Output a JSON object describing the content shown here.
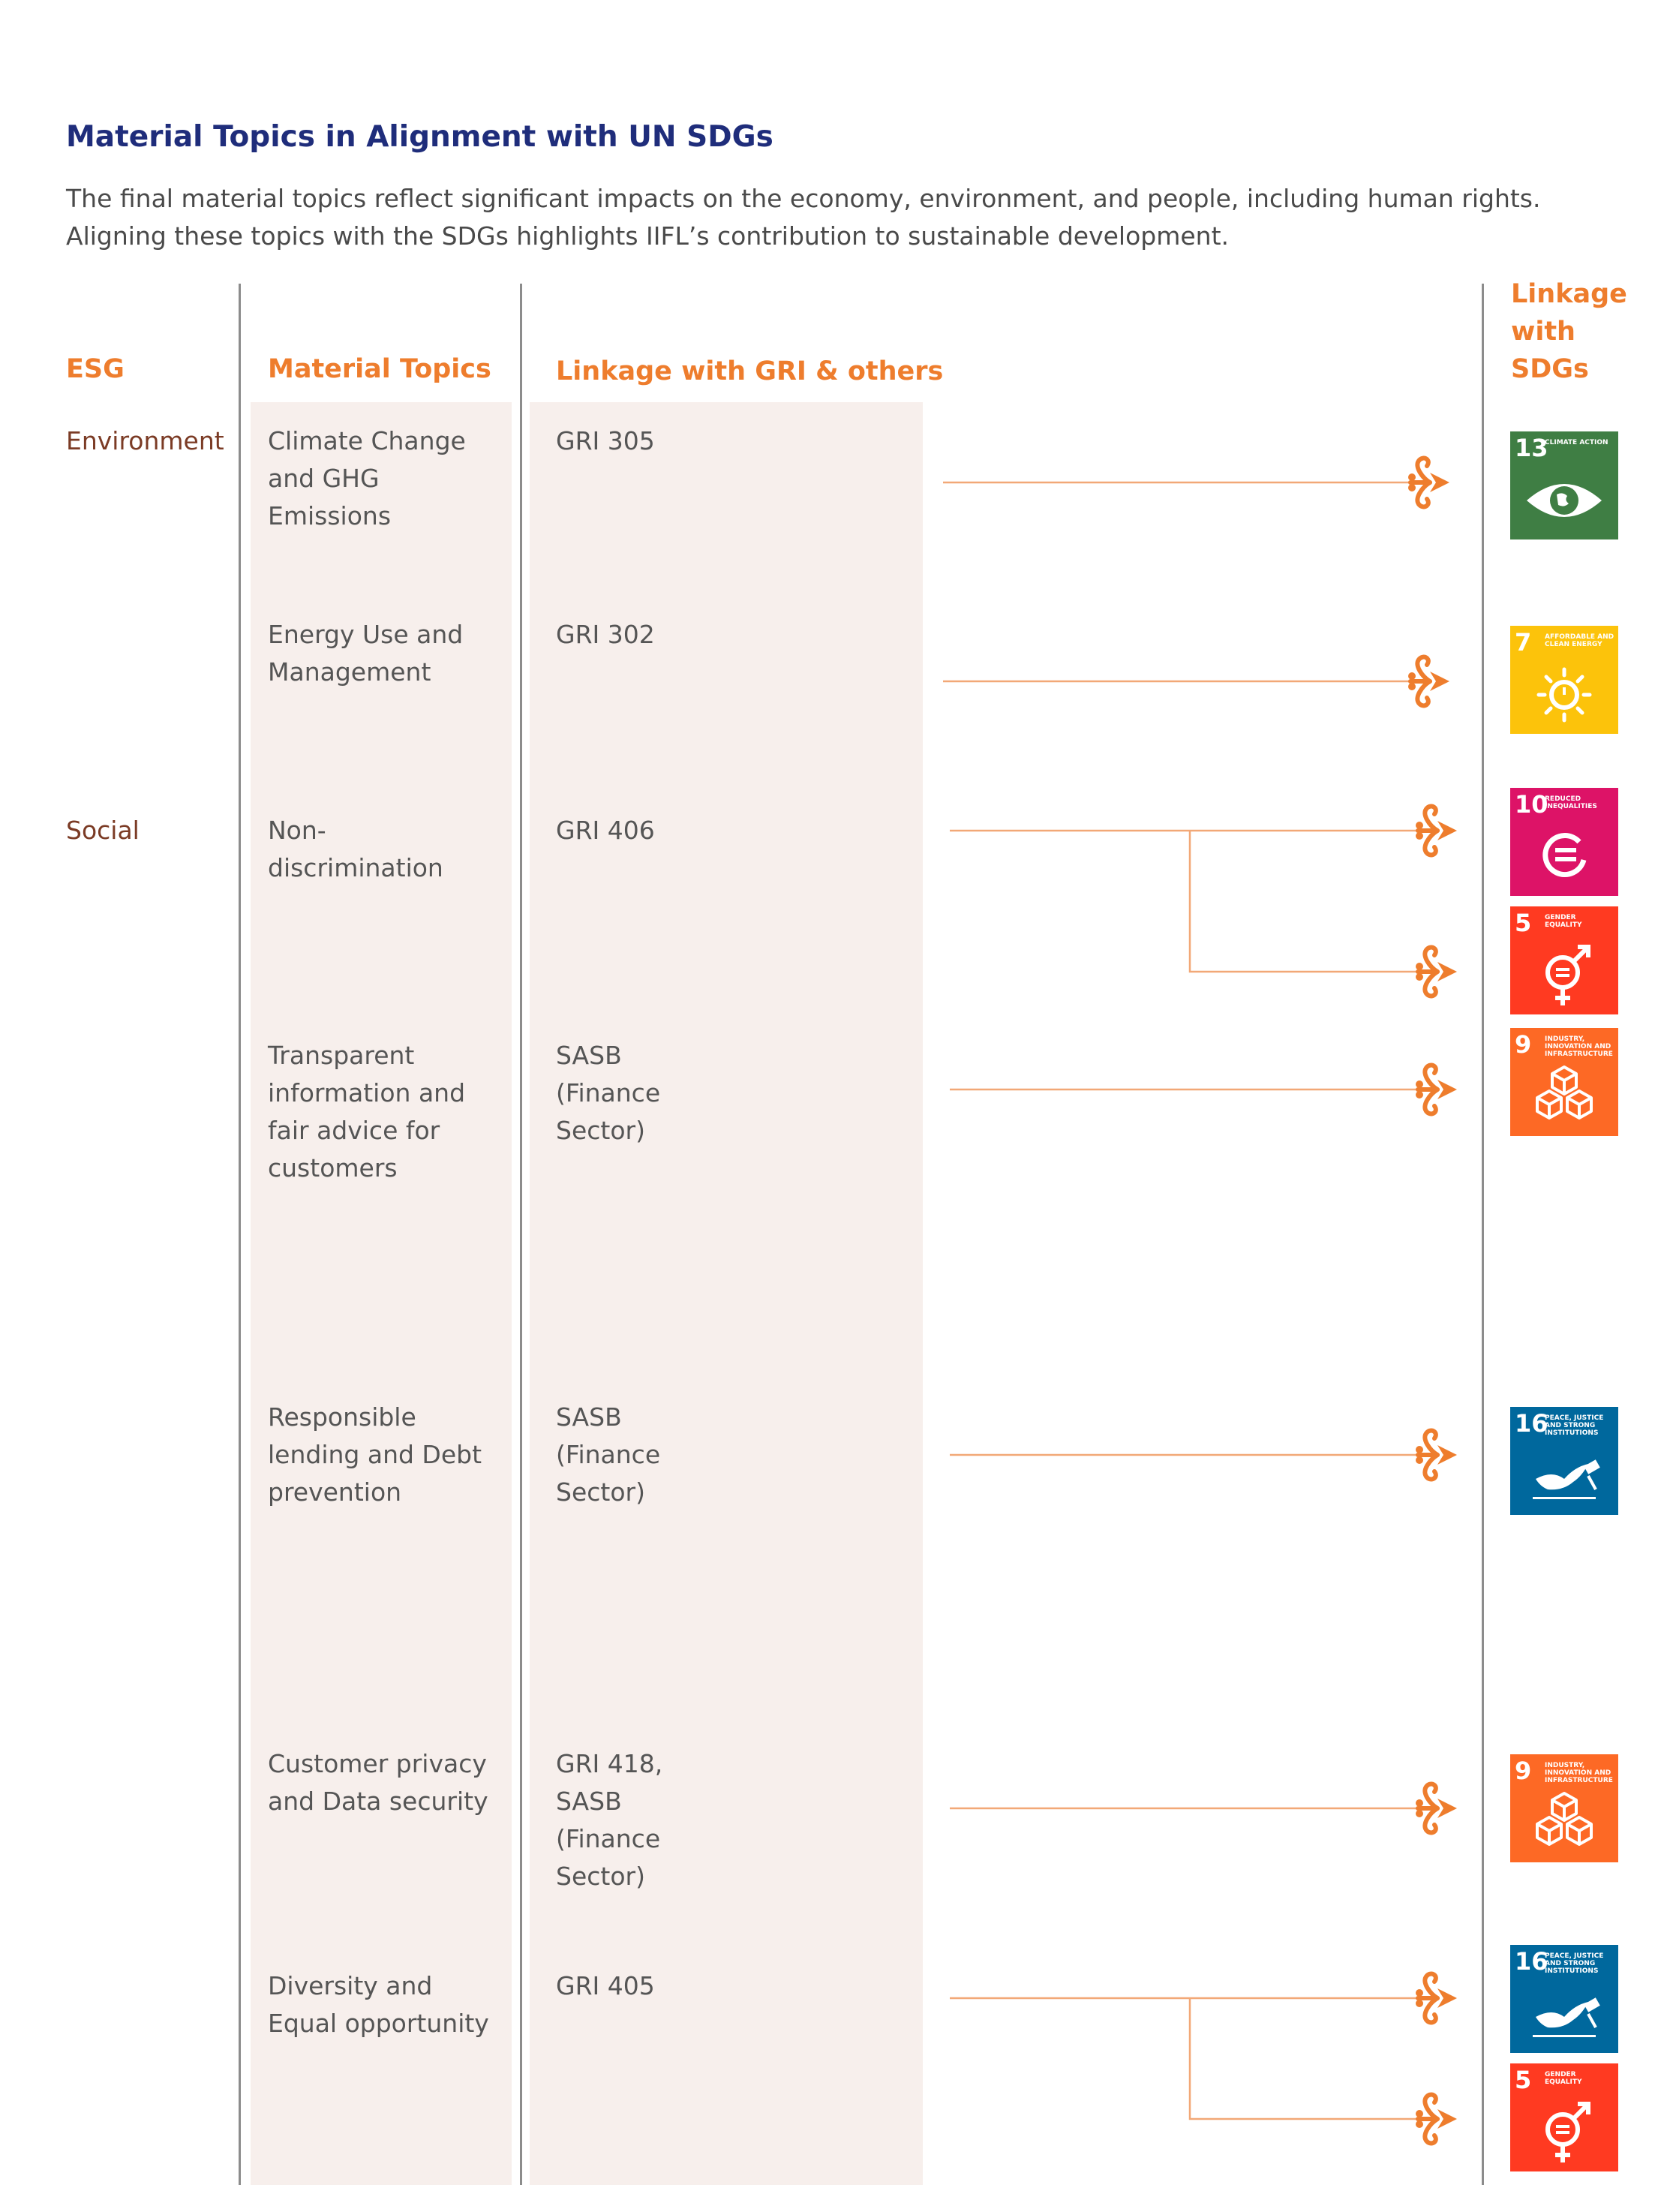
{
  "title": "Material Topics in Alignment with UN SDGs",
  "intro": "The final material topics reflect significant impacts on the economy, environment, and people, including human rights. Aligning these topics with the SDGs highlights IIFL’s contribution to sustainable development.",
  "headers": {
    "esg": "ESG",
    "material_topics": "Material Topics",
    "linkage_gri": "Linkage with GRI & others",
    "linkage_sdgs": "Linkage\nwith\nSDGs"
  },
  "esg_groups": {
    "environment": "Environment",
    "social": "Social"
  },
  "rows": [
    {
      "topic": "Climate Change\nand GHG\nEmissions",
      "gri": "GRI 305"
    },
    {
      "topic": "Energy Use and\nManagement",
      "gri": "GRI 302"
    },
    {
      "topic": "Non-\ndiscrimination",
      "gri": "GRI 406"
    },
    {
      "topic": "Transparent\ninformation and\nfair advice for\ncustomers",
      "gri": "SASB\n(Finance\nSector)"
    },
    {
      "topic": "Responsible\nlending and Debt\nprevention",
      "gri": "SASB\n(Finance\nSector)"
    },
    {
      "topic": "Customer privacy\nand Data security",
      "gri": "GRI 418,\nSASB\n(Finance\nSector)"
    },
    {
      "topic": "Diversity and\nEqual opportunity",
      "gri": "GRI 405"
    }
  ],
  "sdg_tiles": [
    {
      "number": "13",
      "label": "Climate Action",
      "color": "#3f7e44",
      "icon": "eye-globe-icon"
    },
    {
      "number": "7",
      "label": "Affordable and Clean Energy",
      "color": "#fcc30b",
      "icon": "sun-power-icon"
    },
    {
      "number": "10",
      "label": "Reduced Inequalities",
      "color": "#dd1367",
      "icon": "equals-circle-icon"
    },
    {
      "number": "5",
      "label": "Gender Equality",
      "color": "#ff3a21",
      "icon": "gender-equality-icon"
    },
    {
      "number": "9",
      "label": "Industry, Innovation and Infrastructure",
      "color": "#fd6925",
      "icon": "cubes-icon"
    },
    {
      "number": "16",
      "label": "Peace, Justice and Strong Institutions",
      "color": "#00689d",
      "icon": "dove-gavel-icon"
    },
    {
      "number": "9",
      "label": "Industry, Innovation and Infrastructure",
      "color": "#fd6925",
      "icon": "cubes-icon"
    },
    {
      "number": "16",
      "label": "Peace, Justice and Strong Institutions",
      "color": "#00689d",
      "icon": "dove-gavel-icon"
    },
    {
      "number": "5",
      "label": "Gender Equality",
      "color": "#ff3a21",
      "icon": "gender-equality-icon"
    }
  ],
  "colors": {
    "title": "#1f2d7b",
    "header_accent": "#ee7d2d",
    "esg_label": "#7b3b25",
    "body_text": "#555555",
    "column_shade": "#f7efec",
    "connector": "#f2a877",
    "arrow": "#ee7d2d",
    "divider": "#8c8c8c"
  }
}
